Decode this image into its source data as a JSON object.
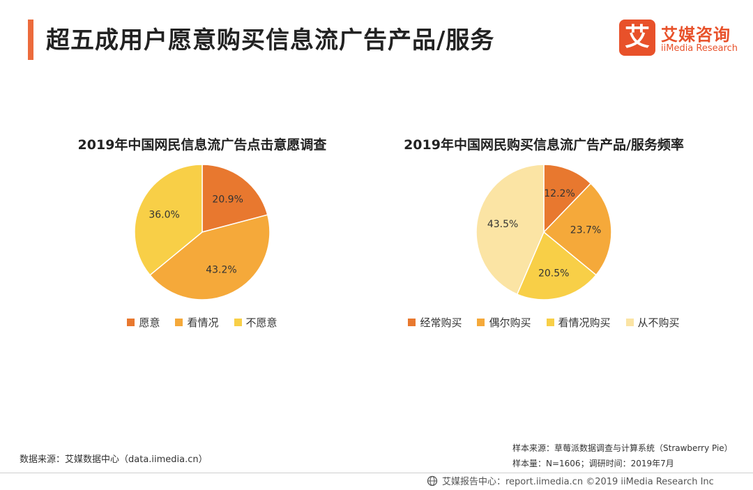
{
  "header": {
    "title": "超五成用户愿意购买信息流广告产品/服务",
    "logo_mark": "艾",
    "logo_cn": "艾媒咨询",
    "logo_en": "iiMedia Research",
    "accent_color": "#ec6b3c"
  },
  "chart_data": [
    {
      "type": "pie",
      "title": "2019年中国网民信息流广告点击意愿调查",
      "labels": [
        "愿意",
        "看情况",
        "不愿意"
      ],
      "values": [
        20.9,
        43.2,
        36.0
      ],
      "value_labels": [
        "20.9%",
        "43.2%",
        "36.0%"
      ],
      "colors": [
        "#e8782f",
        "#f5a93a",
        "#f8cf47"
      ],
      "legend_position": "bottom"
    },
    {
      "type": "pie",
      "title": "2019年中国网民购买信息流广告产品/服务频率",
      "labels": [
        "经常购买",
        "偶尔购买",
        "看情况购买",
        "从不购买"
      ],
      "values": [
        12.2,
        23.7,
        20.5,
        43.5
      ],
      "value_labels": [
        "12.2%",
        "23.7%",
        "20.5%",
        "43.5%"
      ],
      "colors": [
        "#e8782f",
        "#f5a93a",
        "#f8cf47",
        "#fbe4a4"
      ],
      "legend_position": "bottom"
    }
  ],
  "footer": {
    "source_left": "数据来源：艾媒数据中心（data.iimedia.cn）",
    "sample_source": "样本来源：草莓派数据调查与计算系统（Strawberry Pie）",
    "sample_size": "样本量：N=1606；调研时间：2019年7月",
    "bottom_text": "艾媒报告中心：report.iimedia.cn ©2019 iiMedia Research Inc"
  }
}
